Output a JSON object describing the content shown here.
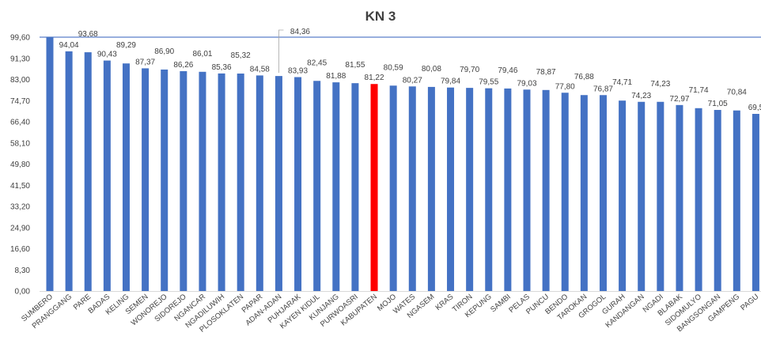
{
  "chart_data": {
    "type": "bar",
    "title": "KN 3",
    "xlabel": "",
    "ylabel": "",
    "ylim": [
      0,
      99.6
    ],
    "yticks": [
      "0,00",
      "8,30",
      "16,60",
      "24,90",
      "33,20",
      "41,50",
      "49,80",
      "58,10",
      "66,40",
      "74,70",
      "83,00",
      "91,30",
      "99,60"
    ],
    "grid": false,
    "legend": "none",
    "bar_color": "#4472C4",
    "highlight_color": "#FF0000",
    "highlight_category": "KABUPATEN",
    "categories": [
      "SUMBERO",
      "PRANGGANG",
      "PARE",
      "BADAS",
      "KELING",
      "SEMEN",
      "WONOREJO",
      "SIDOREJO",
      "NGANCAR",
      "NGADILUWIH",
      "PLOSOKLATEN",
      "PAPAR",
      "ADAN-ADAN",
      "PUHJARAK",
      "KAYEN KIDUL",
      "KUNJANG",
      "PURWOASRI",
      "KABUPATEN",
      "MOJO",
      "WATES",
      "NGASEM",
      "KRAS",
      "TIRON",
      "KEPUNG",
      "SAMBI",
      "PELAS",
      "PUNCU",
      "BENDO",
      "TAROKAN",
      "GROGOL",
      "GURAH",
      "KANDANGAN",
      "NGADI",
      "BLABAK",
      "SIDOMULYO",
      "BANGSONGAN",
      "GAMPENG",
      "PAGU"
    ],
    "values": [
      99.6,
      94.04,
      93.68,
      90.43,
      89.29,
      87.37,
      86.9,
      86.26,
      86.01,
      85.36,
      85.32,
      84.58,
      84.36,
      83.93,
      82.45,
      81.88,
      81.55,
      81.22,
      80.59,
      80.27,
      80.08,
      79.84,
      79.7,
      79.55,
      79.46,
      79.03,
      78.87,
      77.8,
      76.88,
      76.87,
      74.71,
      74.23,
      74.23,
      72.97,
      71.74,
      71.05,
      70.84,
      69.5
    ],
    "value_labels": [
      "",
      "94,04",
      "93,68",
      "90,43",
      "89,29",
      "87,37",
      "86,90",
      "86,26",
      "86,01",
      "85,36",
      "85,32",
      "84,58",
      "84,36",
      "83,93",
      "82,45",
      "81,88",
      "81,55",
      "81,22",
      "80,59",
      "80,27",
      "80,08",
      "79,84",
      "79,70",
      "79,55",
      "79,46",
      "79,03",
      "78,87",
      "77,80",
      "76,88",
      "76,87",
      "74,71",
      "74,23",
      "74,23",
      "72,97",
      "71,74",
      "71,05",
      "70,84",
      "69,5"
    ]
  }
}
